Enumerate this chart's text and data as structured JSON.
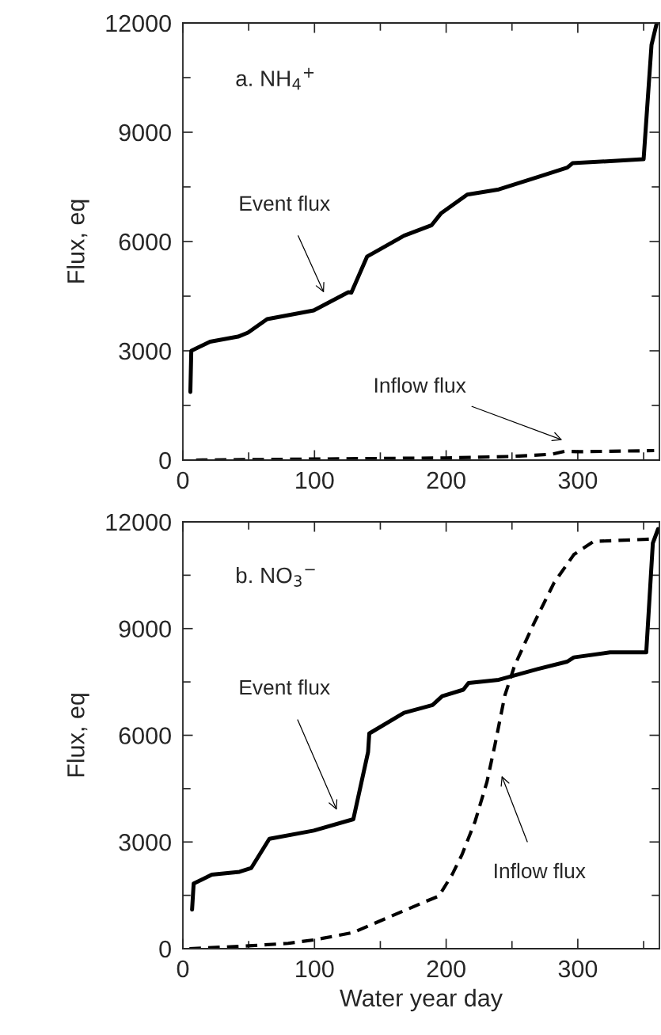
{
  "chart_data": [
    {
      "type": "line",
      "ylabel": "Flux, eq",
      "xlim": [
        0,
        362
      ],
      "xticks": [
        0,
        100,
        200,
        300
      ],
      "ylim": [
        0,
        12000
      ],
      "yticks": [
        0,
        3000,
        6000,
        9000,
        12000
      ],
      "grid": false,
      "legend": false,
      "annotations": [
        "a. NH$_{4}$$^{+}$",
        "Event flux",
        "Inflow flux"
      ],
      "series": [
        {
          "color": "#000000",
          "line_style": "solid",
          "x": [
            5.7,
            6.4,
            20.7,
            42,
            49.5,
            64,
            99.4,
            125.7,
            128,
            140,
            147,
            168,
            189,
            196,
            216,
            240,
            269.5,
            292,
            296,
            350,
            356,
            360
          ],
          "values": [
            1870,
            3000,
            3250,
            3390,
            3500,
            3870,
            4110,
            4610,
            4600,
            5590,
            5730,
            6160,
            6450,
            6770,
            7290,
            7430,
            7770,
            8030,
            8150,
            8260,
            11400,
            12000
          ]
        },
        {
          "color": "#000000",
          "line_style": "dashed",
          "x": [
            10,
            100,
            200,
            250,
            280,
            290,
            300,
            358
          ],
          "values": [
            0,
            30,
            60,
            100,
            160,
            240,
            230,
            260
          ]
        }
      ]
    },
    {
      "type": "line",
      "xlabel": "Water year day",
      "ylabel": "Flux, eq",
      "xlim": [
        0,
        362
      ],
      "xticks": [
        0,
        100,
        200,
        300
      ],
      "ylim": [
        0,
        12000
      ],
      "yticks": [
        0,
        3000,
        6000,
        9000,
        12000
      ],
      "grid": false,
      "legend": false,
      "annotations": [
        "b. NO$_{3}$$^{−}$",
        "Event flux",
        "Inflow flux"
      ],
      "series": [
        {
          "color": "#000000",
          "line_style": "solid",
          "x": [
            7,
            8.2,
            22,
            43,
            52,
            65.7,
            99.4,
            129.5,
            140.7,
            141.6,
            168,
            189.6,
            197,
            213,
            217,
            240,
            269.5,
            292,
            297,
            324.5,
            352,
            357,
            361
          ],
          "values": [
            1100,
            1830,
            2080,
            2160,
            2270,
            3090,
            3320,
            3640,
            5530,
            6050,
            6630,
            6850,
            7100,
            7280,
            7470,
            7560,
            7860,
            8070,
            8190,
            8330,
            8330,
            11400,
            11800
          ]
        },
        {
          "color": "#000000",
          "line_style": "dashed",
          "x": [
            5,
            50,
            80,
            100,
            129,
            182,
            194.5,
            204.5,
            212,
            222,
            231,
            237,
            244.6,
            252,
            267,
            282,
            297,
            312,
            359.6
          ],
          "values": [
            0,
            80,
            150,
            250,
            450,
            1290,
            1480,
            2080,
            2640,
            3580,
            4690,
            5720,
            7120,
            7960,
            9170,
            10290,
            11080,
            11450,
            11520
          ]
        }
      ]
    }
  ]
}
